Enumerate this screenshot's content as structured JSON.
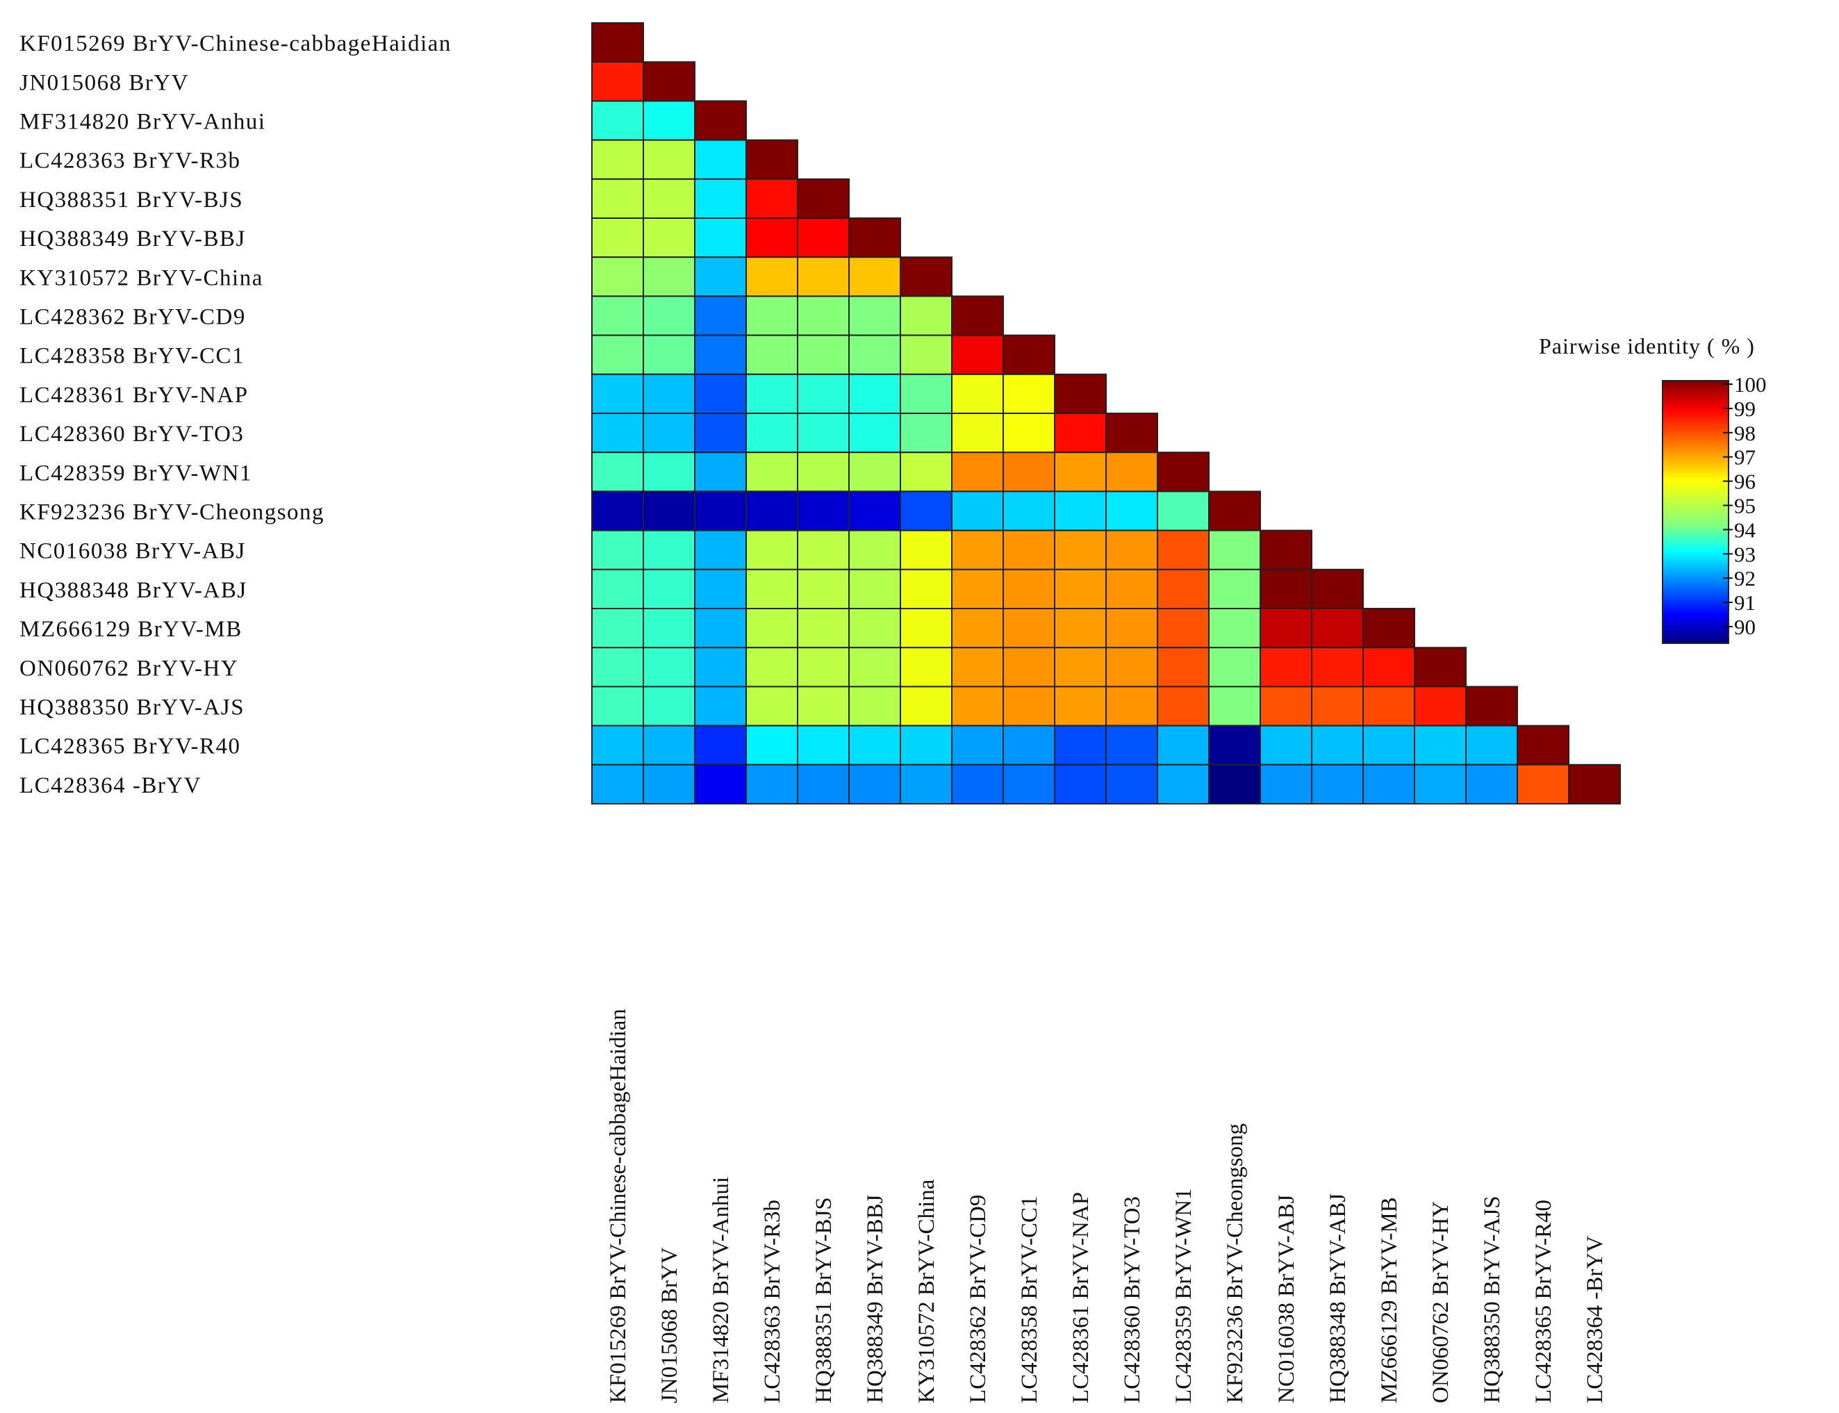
{
  "chart_data": {
    "type": "heatmap",
    "layout": "lower-triangle",
    "labels": [
      "KF015269 BrYV-Chinese-cabbageHaidian",
      "JN015068 BrYV",
      "MF314820 BrYV-Anhui",
      "LC428363 BrYV-R3b",
      "HQ388351 BrYV-BJS",
      "HQ388349 BrYV-BBJ",
      "KY310572 BrYV-China",
      "LC428362 BrYV-CD9",
      "LC428358 BrYV-CC1",
      "LC428361 BrYV-NAP",
      "LC428360 BrYV-TO3",
      "LC428359 BrYV-WN1",
      "KF923236 BrYV-Cheongsong",
      "NC016038 BrYV-ABJ",
      "HQ388348 BrYV-ABJ",
      "MZ666129 BrYV-MB",
      "ON060762 BrYV-HY",
      "HQ388350 BrYV-AJS",
      "LC428365 BrYV-R40",
      "LC428364 -BrYV"
    ],
    "values": [
      [
        100
      ],
      [
        98.6,
        100
      ],
      [
        93.8,
        93.6,
        100
      ],
      [
        95.3,
        95.3,
        93.3,
        100
      ],
      [
        95.3,
        95.3,
        93.3,
        98.8,
        100
      ],
      [
        95.3,
        95.3,
        93.3,
        98.9,
        98.9,
        100
      ],
      [
        94.9,
        94.7,
        92.9,
        96.8,
        96.8,
        96.8,
        100
      ],
      [
        94.4,
        94.3,
        92.2,
        94.6,
        94.6,
        94.5,
        95.1,
        100
      ],
      [
        94.4,
        94.3,
        92.2,
        94.6,
        94.6,
        94.5,
        95.1,
        99.0,
        100
      ],
      [
        93.0,
        92.9,
        91.9,
        93.8,
        93.8,
        93.7,
        94.3,
        96.0,
        96.1,
        100
      ],
      [
        93.0,
        92.9,
        91.9,
        93.8,
        93.8,
        93.7,
        94.3,
        96.0,
        96.1,
        98.8,
        100
      ],
      [
        94.0,
        93.9,
        92.7,
        95.2,
        95.2,
        95.1,
        95.4,
        97.4,
        97.5,
        97.2,
        97.3,
        100
      ],
      [
        90.4,
        90.3,
        90.5,
        90.6,
        90.7,
        90.8,
        91.8,
        93.0,
        93.1,
        93.2,
        93.3,
        94.1,
        100
      ],
      [
        94.0,
        93.9,
        92.8,
        95.3,
        95.3,
        95.2,
        96.0,
        97.2,
        97.3,
        97.2,
        97.3,
        98.0,
        94.5,
        100
      ],
      [
        94.0,
        93.9,
        92.8,
        95.3,
        95.3,
        95.2,
        96.0,
        97.2,
        97.3,
        97.2,
        97.3,
        98.0,
        94.5,
        100,
        100
      ],
      [
        94.0,
        93.9,
        92.8,
        95.3,
        95.3,
        95.2,
        96.0,
        97.2,
        97.3,
        97.2,
        97.3,
        98.0,
        94.5,
        99.4,
        99.4,
        100
      ],
      [
        94.0,
        93.9,
        92.8,
        95.3,
        95.3,
        95.2,
        96.0,
        97.2,
        97.3,
        97.2,
        97.3,
        98.0,
        94.5,
        98.6,
        98.6,
        98.7,
        100
      ],
      [
        94.0,
        93.9,
        92.8,
        95.3,
        95.3,
        95.2,
        96.0,
        97.2,
        97.3,
        97.2,
        97.3,
        98.0,
        94.5,
        98.0,
        98.0,
        98.1,
        98.6,
        100
      ],
      [
        92.9,
        92.8,
        91.5,
        93.4,
        93.3,
        93.2,
        93.1,
        92.6,
        92.5,
        91.8,
        91.9,
        92.8,
        90.2,
        92.9,
        92.9,
        92.9,
        93.0,
        92.9,
        100
      ],
      [
        92.7,
        92.6,
        91.0,
        92.5,
        92.4,
        92.4,
        92.6,
        92.1,
        92.2,
        91.8,
        91.9,
        92.7,
        90.0,
        92.5,
        92.5,
        92.5,
        92.7,
        92.5,
        98.0,
        100
      ]
    ],
    "scale": {
      "title": "Pairwise identity ( % )",
      "min": 90,
      "max": 100,
      "ticks": [
        100,
        99,
        98,
        97,
        96,
        95,
        94,
        93,
        92,
        91,
        90
      ],
      "colormap": [
        "#00007f",
        "#0000ff",
        "#0080ff",
        "#00ffff",
        "#80ff80",
        "#ffff00",
        "#ff8000",
        "#ff0000",
        "#800000"
      ]
    }
  }
}
